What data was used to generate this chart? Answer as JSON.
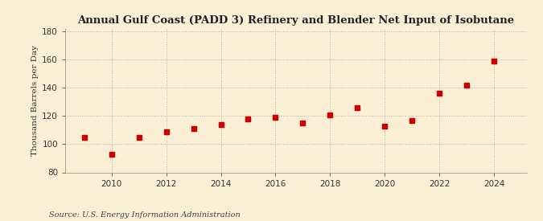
{
  "title": "Annual Gulf Coast (PADD 3) Refinery and Blender Net Input of Isobutane",
  "ylabel": "Thousand Barrels per Day",
  "source": "Source: U.S. Energy Information Administration",
  "background_color": "#faefd4",
  "marker_color": "#cc0000",
  "years": [
    2009,
    2010,
    2011,
    2012,
    2013,
    2014,
    2015,
    2016,
    2017,
    2018,
    2019,
    2020,
    2021,
    2022,
    2023,
    2024
  ],
  "values": [
    105,
    93,
    105,
    109,
    111,
    114,
    118,
    119,
    115,
    121,
    126,
    113,
    117,
    136,
    142,
    159
  ],
  "ylim": [
    80,
    182
  ],
  "yticks": [
    80,
    100,
    120,
    140,
    160,
    180
  ],
  "xlim": [
    2008.3,
    2025.2
  ],
  "xticks": [
    2010,
    2012,
    2014,
    2016,
    2018,
    2020,
    2022,
    2024
  ],
  "grid_color": "#aaaaaa",
  "grid_style": ":",
  "title_fontsize": 9.5,
  "label_fontsize": 7.5,
  "tick_fontsize": 7.5,
  "source_fontsize": 7
}
